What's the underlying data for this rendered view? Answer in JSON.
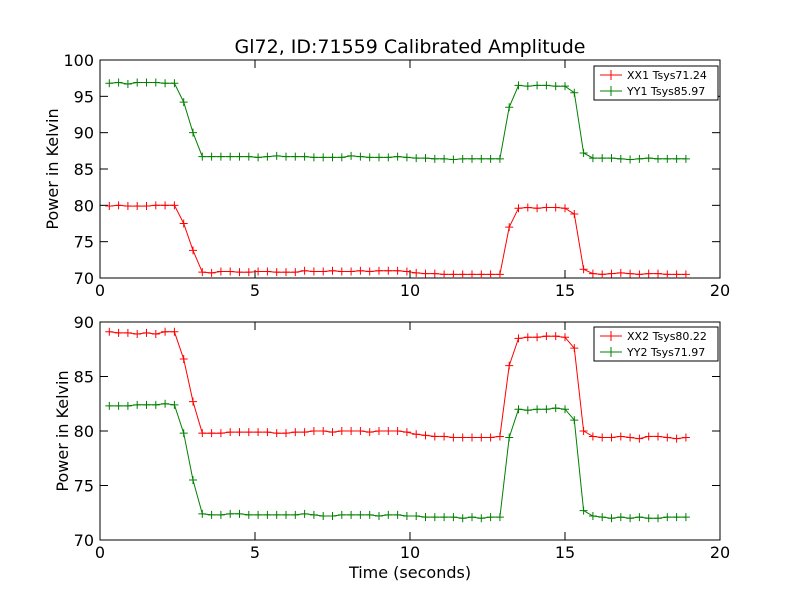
{
  "figure": {
    "title": "Gl72, ID:71559 Calibrated Amplitude",
    "xlabel": "Time (seconds)"
  },
  "colors": {
    "XX": "#ff0000",
    "YY": "#008000"
  },
  "chart_data": [
    {
      "type": "line",
      "title": "Gl72, ID:71559 Calibrated Amplitude",
      "xlabel": "",
      "ylabel": "Power in Kelvin",
      "xlim": [
        0,
        20
      ],
      "ylim": [
        70,
        100
      ],
      "xticks": [
        "0",
        "5",
        "10",
        "15",
        "20"
      ],
      "yticks": [
        "70",
        "75",
        "80",
        "85",
        "90",
        "95",
        "100"
      ],
      "grid": false,
      "legend_position": "top-right",
      "x": [
        0.3,
        0.6,
        0.9,
        1.2,
        1.5,
        1.8,
        2.1,
        2.4,
        2.7,
        3.0,
        3.3,
        3.6,
        3.9,
        4.2,
        4.5,
        4.8,
        5.1,
        5.4,
        5.7,
        6.0,
        6.3,
        6.6,
        6.9,
        7.2,
        7.5,
        7.8,
        8.1,
        8.4,
        8.7,
        9.0,
        9.3,
        9.6,
        9.9,
        10.2,
        10.5,
        10.8,
        11.1,
        11.4,
        11.7,
        12.0,
        12.3,
        12.6,
        12.9,
        13.2,
        13.5,
        13.8,
        14.1,
        14.4,
        14.7,
        15.0,
        15.3,
        15.6,
        15.9,
        16.2,
        16.5,
        16.8,
        17.1,
        17.4,
        17.7,
        18.0,
        18.3,
        18.6,
        18.9
      ],
      "series": [
        {
          "name": "XX1 Tsys71.24",
          "color_key": "XX",
          "values": [
            79.9,
            80.0,
            79.9,
            79.9,
            79.9,
            80.0,
            80.0,
            80.0,
            77.5,
            73.8,
            70.8,
            70.7,
            70.9,
            70.9,
            70.8,
            70.8,
            70.9,
            70.9,
            70.8,
            70.8,
            70.8,
            71.0,
            70.9,
            70.9,
            71.0,
            70.9,
            70.9,
            71.0,
            70.9,
            71.0,
            71.0,
            71.0,
            70.9,
            70.7,
            70.6,
            70.6,
            70.5,
            70.5,
            70.5,
            70.5,
            70.5,
            70.5,
            70.5,
            77.0,
            79.6,
            79.7,
            79.6,
            79.7,
            79.7,
            79.6,
            78.8,
            71.2,
            70.6,
            70.5,
            70.6,
            70.7,
            70.6,
            70.5,
            70.6,
            70.6,
            70.5,
            70.5,
            70.5
          ]
        },
        {
          "name": "YY1 Tsys85.97",
          "color_key": "YY",
          "values": [
            96.8,
            96.9,
            96.7,
            96.9,
            96.9,
            96.9,
            96.8,
            96.8,
            94.2,
            90.0,
            86.7,
            86.7,
            86.7,
            86.7,
            86.7,
            86.7,
            86.6,
            86.7,
            86.8,
            86.7,
            86.7,
            86.7,
            86.6,
            86.6,
            86.6,
            86.6,
            86.8,
            86.7,
            86.6,
            86.6,
            86.6,
            86.7,
            86.6,
            86.5,
            86.5,
            86.4,
            86.4,
            86.3,
            86.4,
            86.4,
            86.4,
            86.4,
            86.4,
            93.5,
            96.5,
            96.4,
            96.5,
            96.5,
            96.4,
            96.4,
            95.5,
            87.2,
            86.5,
            86.5,
            86.5,
            86.4,
            86.3,
            86.4,
            86.5,
            86.4,
            86.4,
            86.4,
            86.4
          ]
        }
      ]
    },
    {
      "type": "line",
      "title": "",
      "xlabel": "Time (seconds)",
      "ylabel": "Power in Kelvin",
      "xlim": [
        0,
        20
      ],
      "ylim": [
        70,
        90
      ],
      "xticks": [
        "0",
        "5",
        "10",
        "15",
        "20"
      ],
      "yticks": [
        "70",
        "75",
        "80",
        "85",
        "90"
      ],
      "grid": false,
      "legend_position": "top-right",
      "x": [
        0.3,
        0.6,
        0.9,
        1.2,
        1.5,
        1.8,
        2.1,
        2.4,
        2.7,
        3.0,
        3.3,
        3.6,
        3.9,
        4.2,
        4.5,
        4.8,
        5.1,
        5.4,
        5.7,
        6.0,
        6.3,
        6.6,
        6.9,
        7.2,
        7.5,
        7.8,
        8.1,
        8.4,
        8.7,
        9.0,
        9.3,
        9.6,
        9.9,
        10.2,
        10.5,
        10.8,
        11.1,
        11.4,
        11.7,
        12.0,
        12.3,
        12.6,
        12.9,
        13.2,
        13.5,
        13.8,
        14.1,
        14.4,
        14.7,
        15.0,
        15.3,
        15.6,
        15.9,
        16.2,
        16.5,
        16.8,
        17.1,
        17.4,
        17.7,
        18.0,
        18.3,
        18.6,
        18.9
      ],
      "series": [
        {
          "name": "XX2 Tsys80.22",
          "color_key": "XX",
          "values": [
            89.1,
            89.0,
            89.0,
            88.9,
            89.0,
            88.9,
            89.1,
            89.1,
            86.6,
            82.7,
            79.8,
            79.8,
            79.8,
            79.9,
            79.9,
            79.9,
            79.9,
            79.9,
            79.8,
            79.8,
            79.9,
            79.9,
            80.0,
            80.0,
            79.9,
            80.0,
            80.0,
            80.0,
            79.9,
            80.0,
            80.0,
            80.0,
            79.9,
            79.7,
            79.6,
            79.5,
            79.5,
            79.4,
            79.4,
            79.4,
            79.4,
            79.4,
            79.5,
            86.0,
            88.5,
            88.6,
            88.6,
            88.7,
            88.7,
            88.6,
            87.6,
            80.0,
            79.5,
            79.4,
            79.4,
            79.5,
            79.4,
            79.3,
            79.5,
            79.5,
            79.4,
            79.3,
            79.4
          ]
        },
        {
          "name": "YY2 Tsys71.97",
          "color_key": "YY",
          "values": [
            82.3,
            82.3,
            82.3,
            82.4,
            82.4,
            82.4,
            82.5,
            82.4,
            79.8,
            75.5,
            72.4,
            72.3,
            72.3,
            72.4,
            72.4,
            72.3,
            72.3,
            72.3,
            72.3,
            72.3,
            72.3,
            72.4,
            72.3,
            72.2,
            72.2,
            72.3,
            72.3,
            72.3,
            72.3,
            72.2,
            72.3,
            72.3,
            72.2,
            72.2,
            72.1,
            72.1,
            72.1,
            72.1,
            72.0,
            72.1,
            72.0,
            72.1,
            72.1,
            79.4,
            82.0,
            81.9,
            82.0,
            82.0,
            82.1,
            82.0,
            81.0,
            72.7,
            72.2,
            72.1,
            72.0,
            72.1,
            72.0,
            72.1,
            72.0,
            72.0,
            72.1,
            72.1,
            72.1
          ]
        }
      ]
    }
  ]
}
